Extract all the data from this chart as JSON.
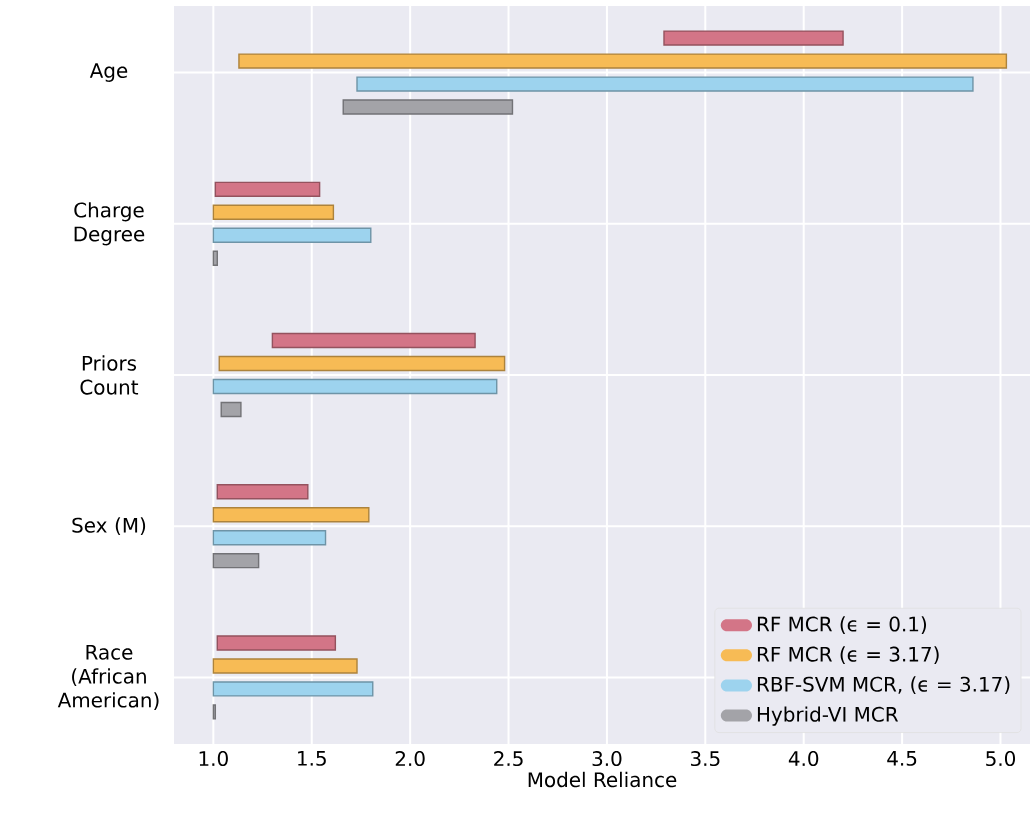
{
  "chart_data": {
    "type": "bar",
    "orientation": "horizontal",
    "xlabel": "Model Reliance",
    "categories": [
      "Age",
      "Charge Degree",
      "Priors Count",
      "Sex (M)",
      "Race (African American)"
    ],
    "series": [
      {
        "name": "RF MCR (ϵ = 0.1)",
        "color": "#d37587",
        "base": [
          3.29,
          1.01,
          1.3,
          1.02,
          1.02
        ],
        "values": [
          0.91,
          0.53,
          1.03,
          0.46,
          0.6
        ]
      },
      {
        "name": "RF MCR (ϵ = 3.17)",
        "color": "#f7bb55",
        "base": [
          1.13,
          1.0,
          1.03,
          1.0,
          1.0
        ],
        "values": [
          3.9,
          0.61,
          1.45,
          0.79,
          0.73
        ]
      },
      {
        "name": "RBF-SVM MCR, (ϵ = 3.17)",
        "color": "#9dd3ee",
        "base": [
          1.73,
          1.0,
          1.0,
          1.0,
          1.0
        ],
        "values": [
          3.13,
          0.8,
          1.44,
          0.57,
          0.81
        ]
      },
      {
        "name": "Hybrid-VI MCR",
        "color": "#a3a3a8",
        "base": [
          1.66,
          1.0,
          1.04,
          1.0,
          1.0
        ],
        "values": [
          0.86,
          0.02,
          0.1,
          0.23,
          0.01
        ]
      }
    ],
    "xlim": [
      0.8,
      5.15
    ],
    "xticks": [
      {
        "value": 1,
        "label": "1.0"
      },
      {
        "value": 1.5,
        "label": "1.5"
      },
      {
        "value": 2,
        "label": "2.0"
      },
      {
        "value": 2.5,
        "label": "2.5"
      },
      {
        "value": 3,
        "label": "3.0"
      },
      {
        "value": 3.5,
        "label": "3.5"
      },
      {
        "value": 4,
        "label": "4.0"
      },
      {
        "value": 4.5,
        "label": "4.5"
      },
      {
        "value": 5,
        "label": "5.0"
      }
    ],
    "grid": true,
    "legend": "bottom right"
  }
}
